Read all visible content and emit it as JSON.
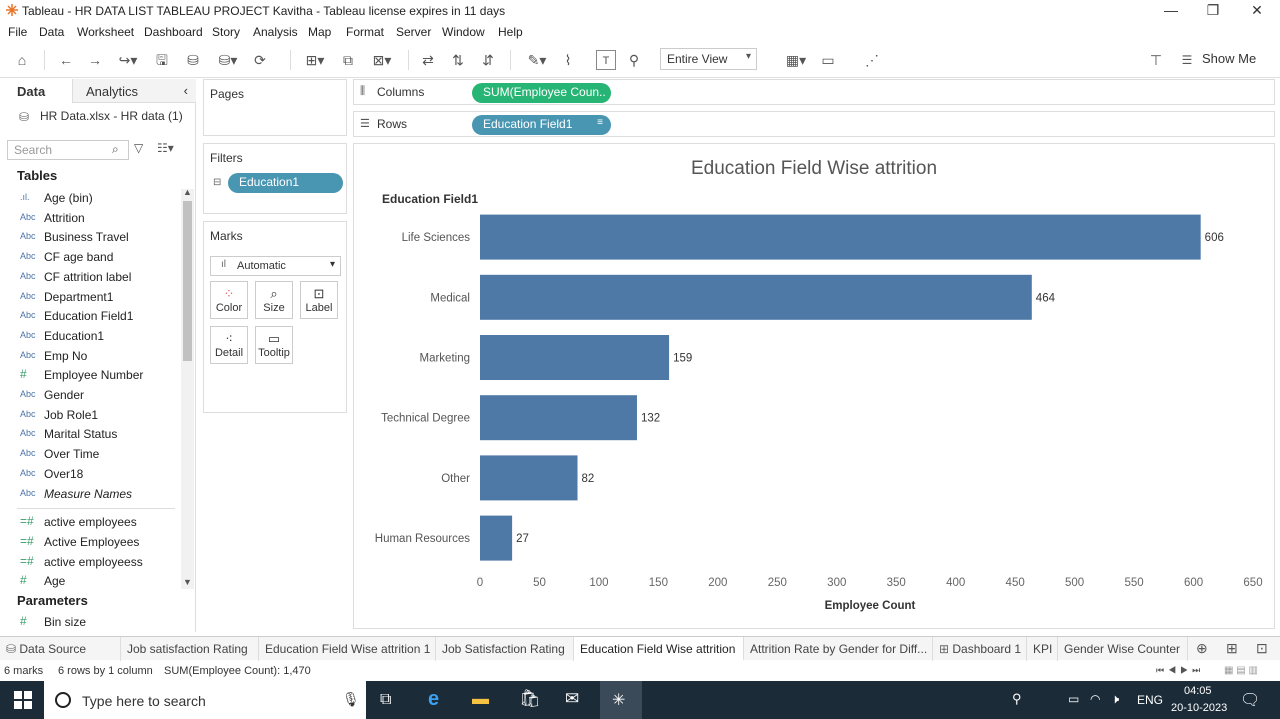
{
  "window": {
    "title": "Tableau - HR DATA LIST TABLEAU PROJECT Kavitha - Tableau license expires in 11 days"
  },
  "menu": [
    "File",
    "Data",
    "Worksheet",
    "Dashboard",
    "Story",
    "Analysis",
    "Map",
    "Format",
    "Server",
    "Window",
    "Help"
  ],
  "toolbar": {
    "view_select": "Entire View",
    "show_me": "Show Me"
  },
  "left_panel": {
    "tab_data": "Data",
    "tab_analytics": "Analytics",
    "datasource": "HR Data.xlsx - HR data (1)",
    "search_placeholder": "Search",
    "tables_header": "Tables",
    "fields": [
      {
        "icon": "bin",
        "label": "Age (bin)"
      },
      {
        "icon": "Abc",
        "label": "Attrition"
      },
      {
        "icon": "Abc",
        "label": "Business Travel"
      },
      {
        "icon": "Abc",
        "label": "CF age band"
      },
      {
        "icon": "Abc",
        "label": "CF attrition label"
      },
      {
        "icon": "Abc",
        "label": "Department1"
      },
      {
        "icon": "Abc",
        "label": "Education Field1"
      },
      {
        "icon": "Abc",
        "label": "Education1"
      },
      {
        "icon": "Abc",
        "label": "Emp No"
      },
      {
        "icon": "#",
        "label": "Employee Number"
      },
      {
        "icon": "Abc",
        "label": "Gender"
      },
      {
        "icon": "Abc",
        "label": "Job Role1"
      },
      {
        "icon": "Abc",
        "label": "Marital Status"
      },
      {
        "icon": "Abc",
        "label": "Over Time"
      },
      {
        "icon": "Abc",
        "label": "Over18"
      },
      {
        "icon": "Abc",
        "label": "Measure Names"
      }
    ],
    "measures": [
      {
        "icon": "=#",
        "label": "active employees"
      },
      {
        "icon": "=#",
        "label": "Active Employees"
      },
      {
        "icon": "=#",
        "label": "active employeess"
      },
      {
        "icon": "#",
        "label": "Age"
      }
    ],
    "parameters_header": "Parameters",
    "parameters": [
      {
        "icon": "#",
        "label": "Bin size"
      }
    ]
  },
  "cards": {
    "pages": "Pages",
    "filters": "Filters",
    "filter_pill": "Education1",
    "marks": "Marks",
    "marks_type": "Automatic",
    "mark_buttons": [
      "Color",
      "Size",
      "Label",
      "Detail",
      "Tooltip"
    ]
  },
  "shelves": {
    "columns_label": "Columns",
    "columns_pill": "SUM(Employee Coun..",
    "rows_label": "Rows",
    "rows_pill": "Education Field1"
  },
  "chart_data": {
    "type": "bar",
    "orientation": "horizontal",
    "title": "Education Field Wise attrition",
    "row_header": "Education Field1",
    "xlabel": "Employee Count",
    "categories": [
      "Life Sciences",
      "Medical",
      "Marketing",
      "Technical Degree",
      "Other",
      "Human Resources"
    ],
    "values": [
      606,
      464,
      159,
      132,
      82,
      27
    ],
    "xlim": [
      0,
      650
    ],
    "xticks": [
      0,
      50,
      100,
      150,
      200,
      250,
      300,
      350,
      400,
      450,
      500,
      550,
      600,
      650
    ],
    "bar_color": "#4e79a7"
  },
  "sheet_tabs": [
    "Data Source",
    "Job satisfaction Rating",
    "Education Field Wise attrition 1",
    "Job Satisfaction Rating",
    "Education Field Wise attrition",
    "Attrition Rate by Gender for Diff...",
    "Dashboard 1",
    "KPI",
    "Gender Wise Counter"
  ],
  "status": {
    "marks": "6 marks",
    "rows": "6 rows by 1 column",
    "sum": "SUM(Employee Count): 1,470"
  },
  "taskbar": {
    "search_placeholder": "Type here to search",
    "lang": "ENG",
    "time": "04:05",
    "date": "20-10-2023"
  }
}
